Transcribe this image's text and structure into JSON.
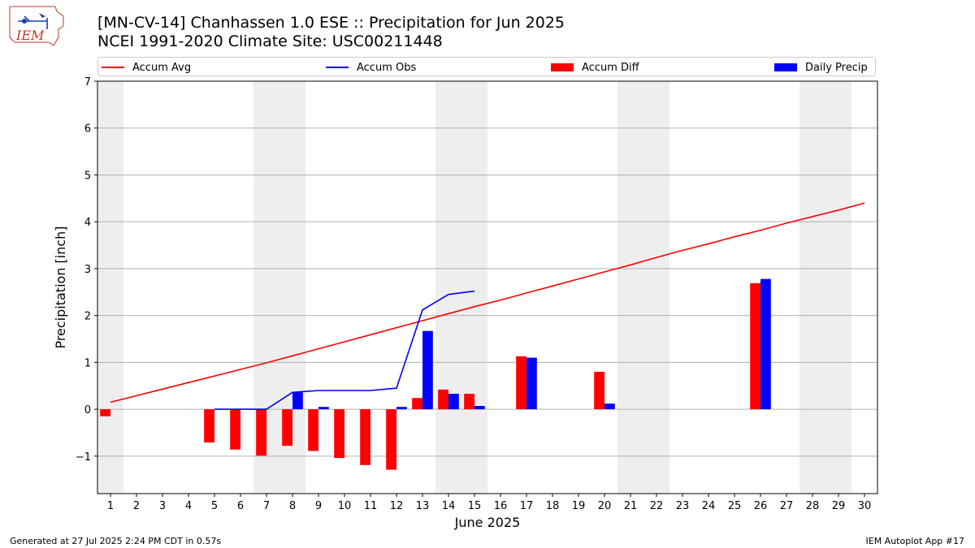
{
  "header": {
    "title_line1": "[MN-CV-14] Chanhassen 1.0 ESE :: Precipitation for Jun 2025",
    "title_line2": "NCEI 1991-2020 Climate Site: USC00211448",
    "logo_text": "IEM"
  },
  "footer": {
    "left": "Generated at 27 Jul 2025 2:24 PM CDT in 0.57s",
    "right": "IEM Autoplot App #17"
  },
  "colors": {
    "accum_avg": "#ff0000",
    "accum_obs": "#0000ff",
    "accum_diff": "#ff0000",
    "daily_precip": "#0000ff",
    "weekend_band": "#eeeeee",
    "grid": "#b0b0b0"
  },
  "chart_data": {
    "type": "bar",
    "xlabel": "June 2025",
    "ylabel": "Precipitation [inch]",
    "xlim": [
      0.5,
      30.5
    ],
    "ylim": [
      -1.8,
      7
    ],
    "yticks": [
      -1,
      0,
      1,
      2,
      3,
      4,
      5,
      6,
      7
    ],
    "ytick_labels": [
      "−1",
      "0",
      "1",
      "2",
      "3",
      "4",
      "5",
      "6",
      "7"
    ],
    "grid": "horizontal",
    "legend_position": "top",
    "weekend_days": [
      1,
      7,
      8,
      14,
      15,
      21,
      22,
      28,
      29
    ],
    "days": [
      1,
      2,
      3,
      4,
      5,
      6,
      7,
      8,
      9,
      10,
      11,
      12,
      13,
      14,
      15,
      16,
      17,
      18,
      19,
      20,
      21,
      22,
      23,
      24,
      25,
      26,
      27,
      28,
      29,
      30
    ],
    "series": [
      {
        "name": "Accum Avg",
        "kind": "line",
        "x": [
          1,
          2,
          3,
          4,
          5,
          6,
          7,
          8,
          9,
          10,
          11,
          12,
          13,
          14,
          15,
          16,
          17,
          18,
          19,
          20,
          21,
          22,
          23,
          24,
          25,
          26,
          27,
          28,
          29,
          30
        ],
        "values": [
          0.15,
          0.29,
          0.43,
          0.57,
          0.71,
          0.85,
          0.99,
          1.14,
          1.29,
          1.44,
          1.59,
          1.74,
          1.89,
          2.04,
          2.19,
          2.33,
          2.48,
          2.63,
          2.78,
          2.93,
          3.08,
          3.24,
          3.39,
          3.53,
          3.68,
          3.82,
          3.97,
          4.11,
          4.25,
          4.4
        ]
      },
      {
        "name": "Accum Obs",
        "kind": "line",
        "x": [
          5,
          6,
          7,
          8,
          9,
          10,
          11,
          12,
          13,
          14,
          15
        ],
        "values": [
          0.0,
          0.0,
          0.0,
          0.36,
          0.4,
          0.4,
          0.4,
          0.45,
          2.12,
          2.45,
          2.52
        ]
      },
      {
        "name": "Accum Diff",
        "kind": "bar",
        "x": [
          1,
          5,
          6,
          7,
          8,
          9,
          10,
          11,
          12,
          13,
          14,
          15,
          17,
          20,
          26
        ],
        "values": [
          -0.15,
          -0.71,
          -0.86,
          -0.99,
          -0.78,
          -0.89,
          -1.04,
          -1.19,
          -1.29,
          0.24,
          0.42,
          0.33,
          1.13,
          0.8,
          2.69
        ]
      },
      {
        "name": "Daily Precip",
        "kind": "bar",
        "x": [
          8,
          9,
          12,
          13,
          14,
          15,
          17,
          20,
          26
        ],
        "values": [
          0.36,
          0.05,
          0.05,
          1.67,
          0.33,
          0.07,
          1.1,
          0.12,
          2.78
        ]
      }
    ]
  }
}
